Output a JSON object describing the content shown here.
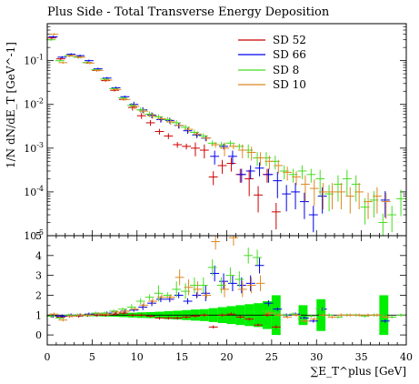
{
  "chart_data": {
    "type": "scatter",
    "title": "Plus Side - Total Transverse Energy Deposition",
    "xlabel": "∑E_T^plus [GeV]",
    "ylabel": "1/N dN/dE_T [GeV^-1]",
    "xlim": [
      0,
      40
    ],
    "top_panel": {
      "yscale": "log",
      "ylim": [
        1e-05,
        0.7
      ]
    },
    "ratio_panel": {
      "ylim": [
        -0.5,
        5
      ],
      "yticks": [
        0,
        1,
        2,
        3,
        4,
        5
      ],
      "band_color": "#00ee00",
      "ref_line_value": 1
    },
    "x_tick_labels": [
      "0",
      "5",
      "10",
      "15",
      "20",
      "25",
      "30",
      "35",
      "40"
    ],
    "y_tick_labels": [
      "10^-5",
      "10^-4",
      "10^-3",
      "10^-2",
      "10^-1"
    ],
    "ratio_tick_labels": [
      "0",
      "1",
      "2",
      "3",
      "4",
      "5"
    ],
    "legend_position": "top-right",
    "series": [
      {
        "name": "SD 52",
        "color": "#cc0000",
        "x": [
          0.5,
          1.5,
          2.5,
          3.5,
          4.5,
          5.5,
          6.5,
          7.5,
          8.5,
          9.5,
          10.5,
          11.5,
          12.5,
          13.5,
          14.5,
          15.5,
          16.5,
          17.5,
          18.5,
          19.5,
          20.5,
          21.5,
          22.5,
          23.5,
          24.5,
          25.5
        ],
        "y": [
          0.33,
          0.11,
          0.13,
          0.12,
          0.09,
          0.06,
          0.035,
          0.021,
          0.013,
          0.0085,
          0.0055,
          0.0038,
          0.0024,
          0.0019,
          0.0012,
          0.0011,
          0.001,
          0.0009,
          0.00022,
          0.0004,
          0.00045,
          0.00025,
          0.0002,
          8.5e-05,
          0.00025,
          3.5e-05
        ],
        "ratio": [
          0.95,
          0.9,
          0.95,
          0.95,
          1.0,
          1.0,
          1.0,
          1.05,
          1.1,
          1.0,
          1.0,
          0.95,
          0.85,
          0.85,
          0.85,
          0.9,
          0.95,
          1.0,
          0.4,
          1.0,
          1.05,
          0.9,
          0.8,
          0.5,
          1.0,
          0.4
        ]
      },
      {
        "name": "SD 66",
        "color": "#0000ee",
        "x": [
          0.5,
          1.5,
          2.5,
          3.5,
          4.5,
          5.5,
          6.5,
          7.5,
          8.5,
          9.5,
          10.5,
          11.5,
          12.5,
          13.5,
          14.5,
          15.5,
          16.5,
          17.5,
          18.5,
          19.5,
          20.5,
          21.5,
          22.5,
          23.5,
          24.5,
          25.5,
          26.5,
          27.5,
          28.5,
          29.5,
          30.5,
          37.5
        ],
        "y": [
          0.35,
          0.12,
          0.14,
          0.13,
          0.1,
          0.065,
          0.04,
          0.024,
          0.015,
          0.01,
          0.0075,
          0.0057,
          0.0045,
          0.0043,
          0.0033,
          0.0025,
          0.002,
          0.0017,
          0.00065,
          0.0011,
          0.00065,
          0.00025,
          0.0003,
          0.00035,
          0.00025,
          0.00018,
          9e-05,
          0.0001,
          6e-05,
          3e-05,
          8e-05,
          6.5e-05
        ],
        "ratio": [
          0.95,
          0.95,
          1.0,
          1.0,
          1.05,
          1.05,
          1.1,
          1.15,
          1.2,
          1.25,
          1.4,
          1.6,
          1.8,
          1.8,
          2.0,
          1.7,
          2.0,
          2.1,
          3.1,
          2.7,
          2.6,
          2.5,
          2.6,
          3.5,
          1.6,
          1.3,
          1.0,
          1.05,
          0.85,
          0.7,
          1.3,
          0.7
        ]
      },
      {
        "name": "SD 8",
        "color": "#44dd22",
        "x": [
          0.5,
          1.5,
          2.5,
          3.5,
          4.5,
          5.5,
          6.5,
          7.5,
          8.5,
          9.5,
          10.5,
          11.5,
          12.5,
          13.5,
          14.5,
          15.5,
          16.5,
          17.5,
          18.5,
          19.5,
          20.5,
          21.5,
          22.5,
          23.5,
          24.5,
          25.5,
          26.5,
          27.5,
          28.5,
          29.5,
          30.5,
          31.5,
          32.5,
          33.5,
          34.5,
          35.5,
          36.5,
          37.5,
          38.5,
          39.5
        ],
        "y": [
          0.3,
          0.1,
          0.13,
          0.12,
          0.09,
          0.062,
          0.038,
          0.023,
          0.014,
          0.0095,
          0.0075,
          0.006,
          0.0052,
          0.0045,
          0.0038,
          0.003,
          0.0023,
          0.0019,
          0.0013,
          0.0012,
          0.0013,
          0.0011,
          0.0009,
          0.0006,
          0.0006,
          0.0005,
          0.0003,
          0.00025,
          0.0003,
          0.00025,
          0.0002,
          9e-05,
          0.00015,
          0.0002,
          0.00015,
          4.5e-05,
          6.5e-05,
          2e-05,
          3e-05,
          7e-05
        ],
        "ratio": [
          0.95,
          0.85,
          1.0,
          1.0,
          1.0,
          1.1,
          1.1,
          1.2,
          1.3,
          1.4,
          1.7,
          1.9,
          2.1,
          2.0,
          2.3,
          2.2,
          2.5,
          2.5,
          3.4,
          2.5,
          3.0,
          2.8,
          4.0,
          3.9,
          1.2,
          1.1,
          1.0,
          1.05,
          0.8,
          0.95,
          1.3,
          1.0,
          0.9,
          1.0,
          1.0,
          0.95,
          1.0,
          1.0,
          0.9,
          1.0
        ]
      },
      {
        "name": "SD 10",
        "color": "#dd8822",
        "x": [
          0.5,
          1.5,
          2.5,
          3.5,
          4.5,
          5.5,
          6.5,
          7.5,
          8.5,
          9.5,
          10.5,
          11.5,
          12.5,
          13.5,
          14.5,
          15.5,
          16.5,
          17.5,
          18.5,
          19.5,
          20.5,
          21.5,
          22.5,
          23.5,
          24.5,
          25.5,
          26.5,
          27.5,
          28.5,
          29.5,
          30.5,
          31.5,
          32.5,
          33.5,
          34.5,
          35.5,
          36.5,
          37.5
        ],
        "y": [
          0.4,
          0.09,
          0.13,
          0.12,
          0.088,
          0.06,
          0.036,
          0.022,
          0.013,
          0.009,
          0.007,
          0.0055,
          0.0047,
          0.004,
          0.0033,
          0.0027,
          0.0021,
          0.0017,
          0.0012,
          0.001,
          0.0011,
          0.0009,
          0.0008,
          0.0006,
          0.0005,
          0.0004,
          0.00028,
          0.00022,
          0.00015,
          0.00012,
          0.0001,
          0.0001,
          0.0001,
          8e-05,
          0.0001,
          6e-05,
          8e-05,
          6e-05
        ],
        "ratio": [
          1.05,
          0.75,
          0.95,
          1.0,
          1.0,
          1.05,
          1.05,
          1.15,
          1.2,
          1.3,
          1.5,
          1.7,
          1.9,
          1.9,
          2.9,
          2.4,
          2.3,
          2.0,
          4.7,
          2.3,
          4.9,
          2.3,
          2.5,
          2.6,
          1.1,
          1.0,
          0.9,
          1.0,
          0.7,
          0.8,
          1.0,
          0.9,
          1.0,
          1.0,
          1.0,
          1.0,
          1.0,
          0.9
        ]
      }
    ],
    "band": {
      "x": [
        4.5,
        5.5,
        6.5,
        7.5,
        8.5,
        9.5,
        10.5,
        11.5,
        12.5,
        13.5,
        14.5,
        15.5,
        16.5,
        17.5,
        18.5,
        19.5,
        20.5,
        21.5,
        22.5,
        23.5,
        24.5,
        25.5,
        28.5,
        30.5,
        37.5
      ],
      "half_width": [
        0.05,
        0.06,
        0.07,
        0.08,
        0.1,
        0.12,
        0.14,
        0.15,
        0.17,
        0.2,
        0.22,
        0.25,
        0.28,
        0.3,
        0.35,
        0.4,
        0.45,
        0.5,
        0.55,
        0.6,
        0.7,
        1.0,
        0.5,
        0.8,
        1.0
      ]
    }
  }
}
